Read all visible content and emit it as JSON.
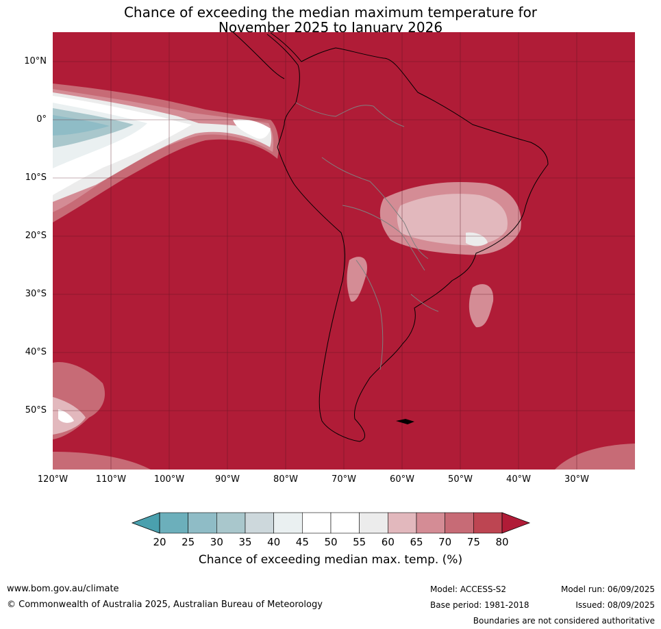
{
  "title_line1": "Chance of exceeding the median maximum temperature for",
  "title_line2": "November 2025 to January 2026",
  "lat_labels": [
    "10°N",
    "0°",
    "10°S",
    "20°S",
    "30°S",
    "40°S",
    "50°S"
  ],
  "lon_labels": [
    "120°W",
    "110°W",
    "100°W",
    "90°W",
    "80°W",
    "70°W",
    "60°W",
    "50°W",
    "40°W",
    "30°W"
  ],
  "colorbar": {
    "ticks": [
      "20",
      "25",
      "30",
      "35",
      "40",
      "45",
      "50",
      "55",
      "60",
      "65",
      "70",
      "75",
      "80"
    ],
    "colors": [
      "#4aa0ae",
      "#6cafbb",
      "#8fbcc6",
      "#a9c7cc",
      "#cdd8dc",
      "#eaf0f1",
      "#ffffff",
      "#ffffff",
      "#ececec",
      "#e2b8bd",
      "#d48c95",
      "#c76b76",
      "#bd4552",
      "#b01c37"
    ],
    "label": "Chance of exceeding median max. temp. (%)"
  },
  "footer": {
    "website": "www.bom.gov.au/climate",
    "copyright": "© Commonwealth of Australia 2025, Australian Bureau of Meteorology",
    "model": "Model: ACCESS-S2",
    "base_period": "Base period: 1981-2018",
    "model_run": "Model run: 06/09/2025",
    "issued": "Issued: 08/09/2025",
    "boundaries": "Boundaries are not considered authoritative"
  },
  "map_colors": {
    "ocean_dominant": "#b01c37",
    "coast": "#000000",
    "borders": "#808080",
    "grid": "#5a1420"
  }
}
